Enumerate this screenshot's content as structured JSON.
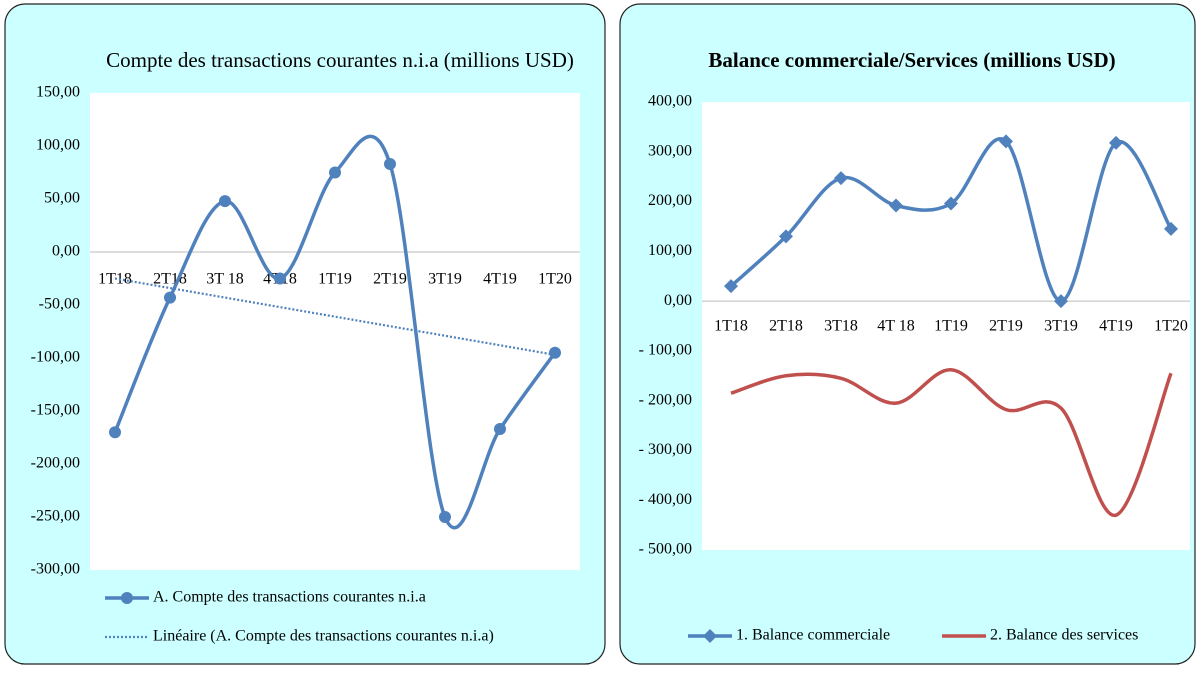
{
  "chart_data": [
    {
      "type": "line",
      "title": "Compte des transactions courantes n.i.a (millions USD)",
      "categories": [
        "1T18",
        "2T18",
        "3T 18",
        "4T18",
        "1T19",
        "2T19",
        "3T19",
        "4T19",
        "1T20"
      ],
      "series": [
        {
          "name": "A. Compte des transactions courantes n.i.a",
          "color": "#4f81bd",
          "marker": "circle",
          "line_style": "solid",
          "smooth": true,
          "values": [
            -170,
            -43,
            48,
            -25,
            75,
            83,
            -250,
            -167,
            -95
          ]
        },
        {
          "name": "Linéaire (A. Compte des transactions courantes n.i.a)",
          "color": "#4f81bd",
          "marker": "none",
          "line_style": "dotted",
          "smooth": false,
          "values": [
            -25,
            -34,
            -43,
            -52,
            -61,
            -70,
            -79,
            -88,
            -97
          ]
        }
      ],
      "ylim": [
        -300,
        150
      ],
      "yticks": [
        {
          "value": 150,
          "label": "150,00"
        },
        {
          "value": 100,
          "label": "100,00"
        },
        {
          "value": 50,
          "label": "50,00"
        },
        {
          "value": 0,
          "label": "0,00"
        },
        {
          "value": -50,
          "label": "-50,00"
        },
        {
          "value": -100,
          "label": "-100,00"
        },
        {
          "value": -150,
          "label": "-150,00"
        },
        {
          "value": -200,
          "label": "-200,00"
        },
        {
          "value": -250,
          "label": "-250,00"
        },
        {
          "value": -300,
          "label": "-300,00"
        }
      ],
      "grid": false,
      "legend": "bottom"
    },
    {
      "type": "line",
      "title": "Balance commerciale/Services (millions USD)",
      "categories": [
        "1T18",
        "2T18",
        "3T18",
        "4T 18",
        "1T19",
        "2T19",
        "3T19",
        "4T19",
        "1T20"
      ],
      "series": [
        {
          "name": "1. Balance commerciale",
          "color": "#4f81bd",
          "marker": "diamond",
          "line_style": "solid",
          "smooth": true,
          "values": [
            30,
            130,
            247,
            192,
            196,
            321,
            0,
            318,
            145
          ]
        },
        {
          "name": "2. Balance des services",
          "color": "#c0504d",
          "marker": "none",
          "line_style": "solid",
          "smooth": true,
          "values": [
            -185,
            -150,
            -155,
            -205,
            -138,
            -218,
            -215,
            -430,
            -145
          ]
        }
      ],
      "ylim": [
        -500,
        400
      ],
      "yticks": [
        {
          "value": 400,
          "label": "400,00"
        },
        {
          "value": 300,
          "label": "300,00"
        },
        {
          "value": 200,
          "label": "200,00"
        },
        {
          "value": 100,
          "label": "100,00"
        },
        {
          "value": 0,
          "label": "0,00"
        },
        {
          "value": -100,
          "label": "- 100,00"
        },
        {
          "value": -200,
          "label": "- 200,00"
        },
        {
          "value": -300,
          "label": "- 300,00"
        },
        {
          "value": -400,
          "label": "- 400,00"
        },
        {
          "value": -500,
          "label": "- 500,00"
        }
      ],
      "grid": false,
      "legend": "bottom"
    }
  ]
}
